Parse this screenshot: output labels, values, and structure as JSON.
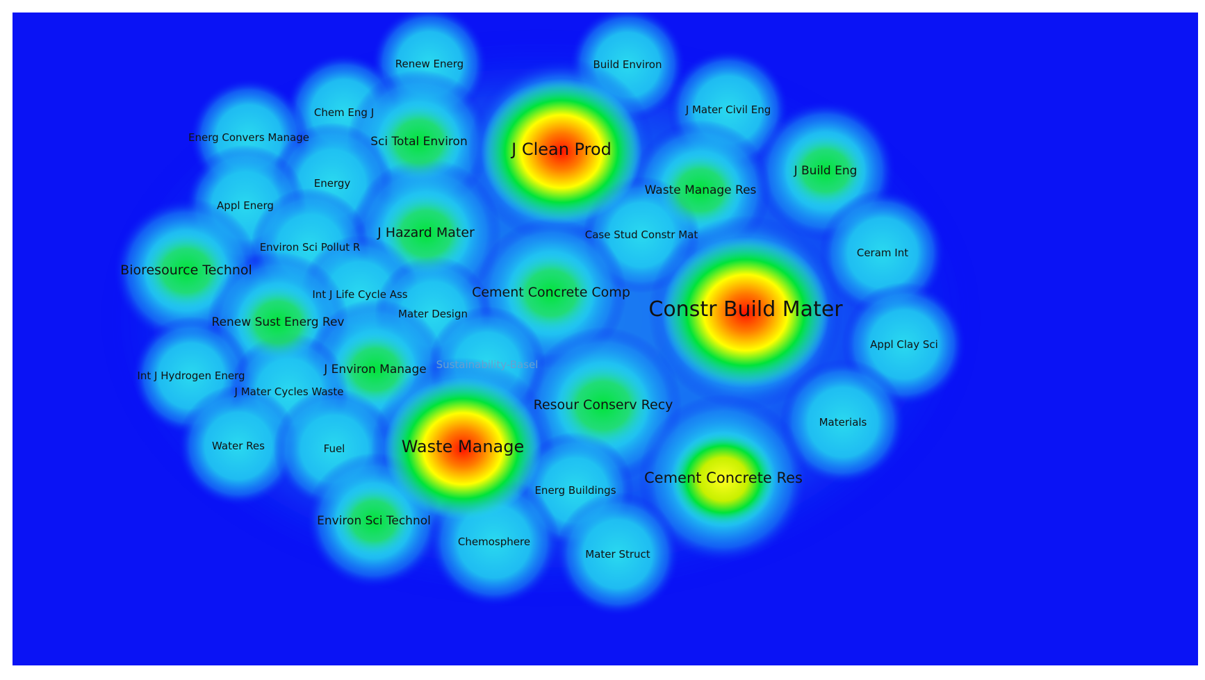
{
  "map": {
    "type": "density-visualization",
    "background_color": "#0a13f5",
    "color_scale": [
      "#0a13f5",
      "#1cb6f5",
      "#27d6ee",
      "#00e33a",
      "#ffff00",
      "#ff7a00",
      "#ff1200"
    ],
    "items": [
      {
        "label": "Renew Energ",
        "density": 0.2
      },
      {
        "label": "Build Environ",
        "density": 0.2
      },
      {
        "label": "Chem Eng J",
        "density": 0.22
      },
      {
        "label": "J Mater Civil Eng",
        "density": 0.25
      },
      {
        "label": "Energ Convers Manage",
        "density": 0.22
      },
      {
        "label": "Sci Total Environ",
        "density": 0.48
      },
      {
        "label": "J Clean Prod",
        "density": 0.92
      },
      {
        "label": "J Build Eng",
        "density": 0.45
      },
      {
        "label": "Waste Manage Res",
        "density": 0.45
      },
      {
        "label": "Energy",
        "density": 0.25
      },
      {
        "label": "Appl Energ",
        "density": 0.25
      },
      {
        "label": "J Hazard Mater",
        "density": 0.55
      },
      {
        "label": "Case Stud Constr Mat",
        "density": 0.2
      },
      {
        "label": "Ceram Int",
        "density": 0.3
      },
      {
        "label": "Environ Sci Pollut R",
        "density": 0.22
      },
      {
        "label": "Bioresource Technol",
        "density": 0.5
      },
      {
        "label": "Cement Concrete Comp",
        "density": 0.55
      },
      {
        "label": "Constr Build Mater",
        "density": 1.0
      },
      {
        "label": "Int J Life Cycle Ass",
        "density": 0.22
      },
      {
        "label": "Mater Design",
        "density": 0.2
      },
      {
        "label": "Renew Sust Energ Rev",
        "density": 0.45
      },
      {
        "label": "Appl Clay Sci",
        "density": 0.28
      },
      {
        "label": "Int J Hydrogen Energ",
        "density": 0.22
      },
      {
        "label": "J Environ Manage",
        "density": 0.45
      },
      {
        "label": "Sustainability-Basel",
        "density": 0.2
      },
      {
        "label": "J Mater Cycles Waste",
        "density": 0.22
      },
      {
        "label": "Resour Conserv Recy",
        "density": 0.62
      },
      {
        "label": "Materials",
        "density": 0.3
      },
      {
        "label": "Water Res",
        "density": 0.25
      },
      {
        "label": "Fuel",
        "density": 0.25
      },
      {
        "label": "Waste Manage",
        "density": 0.88
      },
      {
        "label": "Cement Concrete Res",
        "density": 0.75
      },
      {
        "label": "Energ Buildings",
        "density": 0.2
      },
      {
        "label": "Environ Sci Technol",
        "density": 0.4
      },
      {
        "label": "Chemosphere",
        "density": 0.35
      },
      {
        "label": "Mater Struct",
        "density": 0.28
      }
    ]
  }
}
